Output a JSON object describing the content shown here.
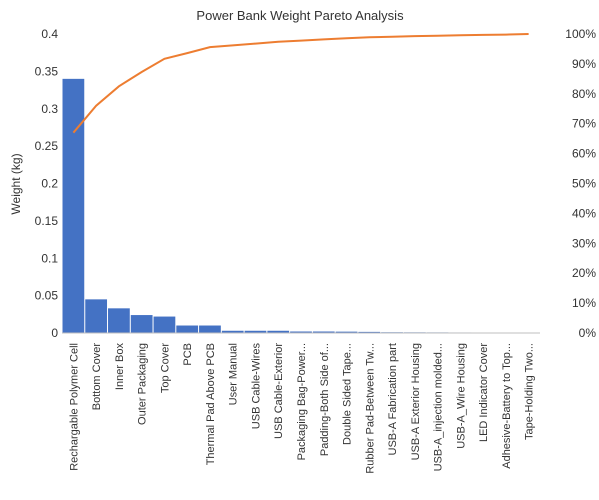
{
  "chart_data": {
    "type": "bar",
    "title": "Power Bank Weight Pareto Analysis",
    "ylabel": "Weight (kg)",
    "xlabel": "",
    "ylim": [
      0,
      0.4
    ],
    "y2lim": [
      0,
      100
    ],
    "y_ticks": [
      "0",
      "0.05",
      "0.1",
      "0.15",
      "0.2",
      "0.25",
      "0.3",
      "0.35",
      "0.4"
    ],
    "y2_ticks": [
      "0%",
      "10%",
      "20%",
      "30%",
      "40%",
      "50%",
      "60%",
      "70%",
      "80%",
      "90%",
      "100%"
    ],
    "categories": [
      "Rechargable Polymer Cell",
      "Bottom Cover",
      "Inner Box",
      "Outer Packaging",
      "Top Cover",
      "PCB",
      "Thermal Pad Above PCB",
      "User Manual",
      "USB Cable-Wires",
      "USB Cable-Exterior",
      "Packaging Bag-Power...",
      "Padding-Both Side of...",
      "Double Sided Tape...",
      "Rubber Pad-Between Tw...",
      "USB-A Fabrication part",
      "USB-A Exterior Housing",
      "USB-A_injection molded...",
      "USB-A_Wire Housing",
      "LED Indicator Cover",
      "Adhesive-Battery to Top...",
      "Tape-Holding Two..."
    ],
    "series": [
      {
        "type": "bar",
        "axis": "left",
        "values": [
          0.34,
          0.045,
          0.033,
          0.024,
          0.022,
          0.01,
          0.01,
          0.003,
          0.003,
          0.003,
          0.002,
          0.002,
          0.0018,
          0.0015,
          0.001,
          0.0009,
          0.0008,
          0.0007,
          0.0005,
          0.0004,
          0.0003
        ]
      },
      {
        "type": "line",
        "axis": "right",
        "values": [
          67,
          76,
          82.5,
          87.3,
          91.7,
          93.6,
          95.6,
          96.2,
          96.8,
          97.4,
          97.8,
          98.2,
          98.6,
          98.9,
          99.1,
          99.3,
          99.4,
          99.6,
          99.7,
          99.8,
          100
        ]
      }
    ],
    "colors": {
      "bar": "#4472C4",
      "line": "#ED7D31",
      "axis": "#BFBFBF"
    },
    "grid": false,
    "legend": "none"
  }
}
